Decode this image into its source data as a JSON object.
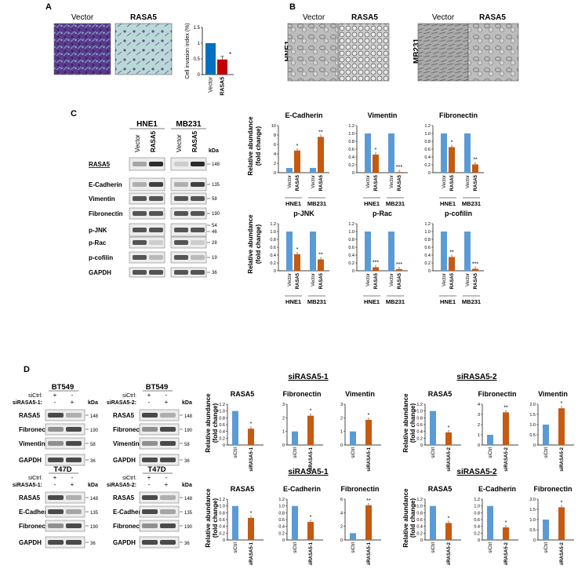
{
  "colors": {
    "vector_blue": "#5b9bd5",
    "rasa_orange": "#c55a11",
    "label_red": "#cc2222"
  },
  "panels": {
    "A": {
      "letter": "A",
      "image_labels": [
        "Vector",
        "RASA5"
      ],
      "chart_data": {
        "type": "bar",
        "categories": [
          "Vector",
          "RASA5"
        ],
        "values": [
          1.0,
          0.48
        ],
        "errors": [
          0,
          0.1
        ],
        "ylabel": "Cell invasion index (%)",
        "ylim": [
          0,
          1.5
        ],
        "yticks": [
          "0",
          "0.5",
          "1",
          "1.5"
        ],
        "sig": [
          "",
          "*"
        ],
        "bar_colors": [
          "#0070c0",
          "#c00000"
        ]
      }
    },
    "B": {
      "letter": "B",
      "cell_lines": [
        "HNE1",
        "MB231"
      ],
      "image_labels": [
        "Vector",
        "RASA5",
        "Vector",
        "RASA5"
      ]
    },
    "C": {
      "letter": "C",
      "blot": {
        "cell_lines": [
          "HNE1",
          "MB231"
        ],
        "lane_labels": [
          "Vector",
          "RASA5"
        ],
        "kda_header": "kDa",
        "rows": [
          {
            "name": "RASA5",
            "kda": [
              "148"
            ]
          },
          {
            "name": "E-Cadherin",
            "kda": [
              "135"
            ]
          },
          {
            "name": "Vimentin",
            "kda": [
              "58"
            ]
          },
          {
            "name": "Fibronectin",
            "kda": [
              "190"
            ]
          },
          {
            "name": "p-JNK",
            "kda": [
              "54",
              "46"
            ]
          },
          {
            "name": "p-Rac",
            "kda": [
              "28"
            ]
          },
          {
            "name": "p-cofilin",
            "kda": [
              "19"
            ]
          },
          {
            "name": "GAPDH",
            "kda": [
              "36"
            ]
          }
        ]
      },
      "ylabel_lines": [
        "Relative abundance",
        "(fold change)"
      ],
      "group_labels": [
        "HNE1",
        "MB231"
      ],
      "bar_labels": [
        "Vector",
        "RASA5"
      ],
      "chart_data": [
        {
          "type": "bar",
          "title": "E-Cadherin",
          "ylim": [
            0,
            10
          ],
          "yticks": [
            "0",
            "2",
            "4",
            "6",
            "8",
            "10"
          ],
          "series": [
            {
              "name": "Vector",
              "values": [
                1.0,
                1.0
              ]
            },
            {
              "name": "RASA5",
              "values": [
                4.7,
                7.6
              ]
            }
          ],
          "sig": [
            "*",
            "**"
          ]
        },
        {
          "type": "bar",
          "title": "Vimentin",
          "ylim": [
            0,
            1.2
          ],
          "yticks": [
            "0",
            "0.2",
            "0.4",
            "0.6",
            "0.8",
            "1.0",
            "1.2"
          ],
          "series": [
            {
              "name": "Vector",
              "values": [
                1.0,
                1.0
              ]
            },
            {
              "name": "RASA5",
              "values": [
                0.46,
                0.005
              ]
            }
          ],
          "sig": [
            "*",
            "***"
          ]
        },
        {
          "type": "bar",
          "title": "Fibronectin",
          "ylim": [
            0,
            1.2
          ],
          "yticks": [
            "0",
            "0.2",
            "0.4",
            "0.6",
            "0.8",
            "1.0",
            "1.2"
          ],
          "series": [
            {
              "name": "Vector",
              "values": [
                1.0,
                1.0
              ]
            },
            {
              "name": "RASA5",
              "values": [
                0.65,
                0.21
              ]
            }
          ],
          "sig": [
            "*",
            "**"
          ]
        },
        {
          "type": "bar",
          "title": "p-JNK",
          "ylim": [
            0,
            1.2
          ],
          "yticks": [
            "0",
            "0.2",
            "0.4",
            "0.6",
            "0.8",
            "1.0",
            "1.2"
          ],
          "series": [
            {
              "name": "Vector",
              "values": [
                1.0,
                1.0
              ]
            },
            {
              "name": "RASA5",
              "values": [
                0.42,
                0.29
              ]
            }
          ],
          "sig": [
            "*",
            "**"
          ]
        },
        {
          "type": "bar",
          "title": "p-Rac",
          "ylim": [
            0,
            1.2
          ],
          "yticks": [
            "0",
            "0.2",
            "0.4",
            "0.6",
            "0.8",
            "1.0",
            "1.2"
          ],
          "series": [
            {
              "name": "Vector",
              "values": [
                1.0,
                1.0
              ]
            },
            {
              "name": "RASA5",
              "values": [
                0.09,
                0.04
              ]
            }
          ],
          "sig": [
            "***",
            "***"
          ]
        },
        {
          "type": "bar",
          "title": "p-cofilin",
          "ylim": [
            0,
            1.2
          ],
          "yticks": [
            "0",
            "0.2",
            "0.4",
            "0.6",
            "0.8",
            "1.0",
            "1.2"
          ],
          "series": [
            {
              "name": "Vector",
              "values": [
                1.0,
                1.0
              ]
            },
            {
              "name": "RASA5",
              "values": [
                0.35,
                0.05
              ]
            }
          ],
          "sig": [
            "**",
            "***"
          ]
        }
      ]
    },
    "D": {
      "letter": "D",
      "kda_header": "kDa",
      "blots": [
        {
          "cell_line": "BT549",
          "rows_top": [
            "siCtrl:",
            "siRASA5-1:"
          ],
          "signs_ctrl": [
            "+",
            "-"
          ],
          "signs_si": [
            "-",
            "+"
          ],
          "rows": [
            {
              "name": "RASA5",
              "kda": "148"
            },
            {
              "name": "Fibronectin",
              "kda": "190"
            },
            {
              "name": "Vimentin",
              "kda": "58"
            },
            {
              "name": "GAPDH",
              "kda": "36"
            }
          ]
        },
        {
          "cell_line": "BT549",
          "rows_top": [
            "siCtrl:",
            "siRASA5-2:"
          ],
          "signs_ctrl": [
            "+",
            "-"
          ],
          "signs_si": [
            "-",
            "+"
          ],
          "rows": [
            {
              "name": "RASA5",
              "kda": "148"
            },
            {
              "name": "Fibronectin",
              "kda": "190"
            },
            {
              "name": "Vimentin",
              "kda": "58"
            },
            {
              "name": "GAPDH",
              "kda": "36"
            }
          ]
        },
        {
          "cell_line": "T47D",
          "rows_top": [
            "siCtrl:",
            "siRASA5-1:"
          ],
          "signs_ctrl": [
            "+",
            "-"
          ],
          "signs_si": [
            "-",
            "+"
          ],
          "rows": [
            {
              "name": "RASA5",
              "kda": "148"
            },
            {
              "name": "E-Cadherin",
              "kda": "135"
            },
            {
              "name": "Fibronectin",
              "kda": "190"
            },
            {
              "name": "GAPDH",
              "kda": "36"
            }
          ]
        },
        {
          "cell_line": "T47D",
          "rows_top": [
            "siCtrl:",
            "siRASA5-2:"
          ],
          "signs_ctrl": [
            "+",
            "-"
          ],
          "signs_si": [
            "-",
            "+"
          ],
          "rows": [
            {
              "name": "RASA5",
              "kda": "148"
            },
            {
              "name": "E-Cadherin",
              "kda": "135"
            },
            {
              "name": "Fibronectin",
              "kda": "190"
            },
            {
              "name": "GAPDH",
              "kda": "36"
            }
          ]
        }
      ],
      "group_titles": [
        "siRASA5-1",
        "siRASA5-2",
        "siRASA5-1",
        "siRASA5-2"
      ],
      "ylabel_lines": [
        "Relative abundance",
        "(fold change)"
      ],
      "chart_data": [
        {
          "type": "bar",
          "title": "RASA5",
          "categories": [
            "siCtrl",
            "siRASA5-1"
          ],
          "values": [
            1.0,
            0.48
          ],
          "sig": [
            "",
            "*"
          ],
          "ylim": [
            0,
            1.2
          ],
          "yticks": [
            "0",
            "0.2",
            "0.4",
            "0.6",
            "0.8",
            "1.0",
            "1.2"
          ]
        },
        {
          "type": "bar",
          "title": "Fibronectin",
          "categories": [
            "siCtrl",
            "siRASA5-1"
          ],
          "values": [
            1.0,
            2.15
          ],
          "sig": [
            "",
            "*"
          ],
          "ylim": [
            0,
            3
          ],
          "yticks": [
            "0",
            "1",
            "2",
            "3"
          ]
        },
        {
          "type": "bar",
          "title": "Vimentin",
          "categories": [
            "siCtrl",
            "siRASA5-1"
          ],
          "values": [
            1.0,
            1.85
          ],
          "sig": [
            "",
            "*"
          ],
          "ylim": [
            0,
            3
          ],
          "yticks": [
            "0",
            "1",
            "2",
            "3"
          ]
        },
        {
          "type": "bar",
          "title": "RASA5",
          "categories": [
            "siCtrl",
            "siRASA5-2"
          ],
          "values": [
            1.0,
            0.37
          ],
          "sig": [
            "",
            "*"
          ],
          "ylim": [
            0,
            1.2
          ],
          "yticks": [
            "0",
            "0.2",
            "0.4",
            "0.6",
            "0.8",
            "1.0",
            "1.2"
          ]
        },
        {
          "type": "bar",
          "title": "Fibronectin",
          "categories": [
            "siCtrl",
            "siRASA5-2"
          ],
          "values": [
            1.0,
            3.2
          ],
          "sig": [
            "",
            "**"
          ],
          "ylim": [
            0,
            4
          ],
          "yticks": [
            "0",
            "1",
            "2",
            "3",
            "4"
          ]
        },
        {
          "type": "bar",
          "title": "Vimentin",
          "categories": [
            "siCtrl",
            "siRASA5-2"
          ],
          "values": [
            1.0,
            1.8
          ],
          "sig": [
            "",
            "*"
          ],
          "ylim": [
            0,
            2
          ],
          "yticks": [
            "0",
            "0.5",
            "1.0",
            "1.5",
            "2.0"
          ]
        },
        {
          "type": "bar",
          "title": "RASA5",
          "categories": [
            "siCtrl",
            "siRASA5-1"
          ],
          "values": [
            1.0,
            0.65
          ],
          "sig": [
            "",
            "*"
          ],
          "ylim": [
            0,
            1.2
          ],
          "yticks": [
            "0",
            "0.2",
            "0.4",
            "0.6",
            "0.8",
            "1.0",
            "1.2"
          ]
        },
        {
          "type": "bar",
          "title": "E-Cadherin",
          "categories": [
            "siCtrl",
            "siRASA5-1"
          ],
          "values": [
            1.0,
            0.53
          ],
          "sig": [
            "",
            "*"
          ],
          "ylim": [
            0,
            1.2
          ],
          "yticks": [
            "0",
            "0.2",
            "0.4",
            "0.6",
            "0.8",
            "1.0",
            "1.2"
          ]
        },
        {
          "type": "bar",
          "title": "Fibronectin",
          "categories": [
            "siCtrl",
            "siRASA5-1"
          ],
          "values": [
            1.0,
            5.1
          ],
          "sig": [
            "",
            "**"
          ],
          "ylim": [
            0,
            6
          ],
          "yticks": [
            "0",
            "2",
            "4",
            "6"
          ]
        },
        {
          "type": "bar",
          "title": "RASA5",
          "categories": [
            "siCtrl",
            "siRASA5-2"
          ],
          "values": [
            1.0,
            0.5
          ],
          "sig": [
            "",
            "*"
          ],
          "ylim": [
            0,
            1.2
          ],
          "yticks": [
            "0",
            "0.2",
            "0.4",
            "0.6",
            "0.8",
            "1.0",
            "1.2"
          ]
        },
        {
          "type": "bar",
          "title": "E-Cadherin",
          "categories": [
            "siCtrl",
            "siRASA5-2"
          ],
          "values": [
            1.0,
            0.37
          ],
          "sig": [
            "",
            "*"
          ],
          "ylim": [
            0,
            1.2
          ],
          "yticks": [
            "0",
            "0.2",
            "0.4",
            "0.6",
            "0.8",
            "1.0",
            "1.2"
          ]
        },
        {
          "type": "bar",
          "title": "Fibronectin",
          "categories": [
            "siCtrl",
            "siRASA5-2"
          ],
          "values": [
            1.0,
            1.6
          ],
          "sig": [
            "",
            "*"
          ],
          "ylim": [
            0,
            2
          ],
          "yticks": [
            "0",
            "0.5",
            "1.0",
            "1.5",
            "2.0"
          ]
        }
      ]
    }
  }
}
